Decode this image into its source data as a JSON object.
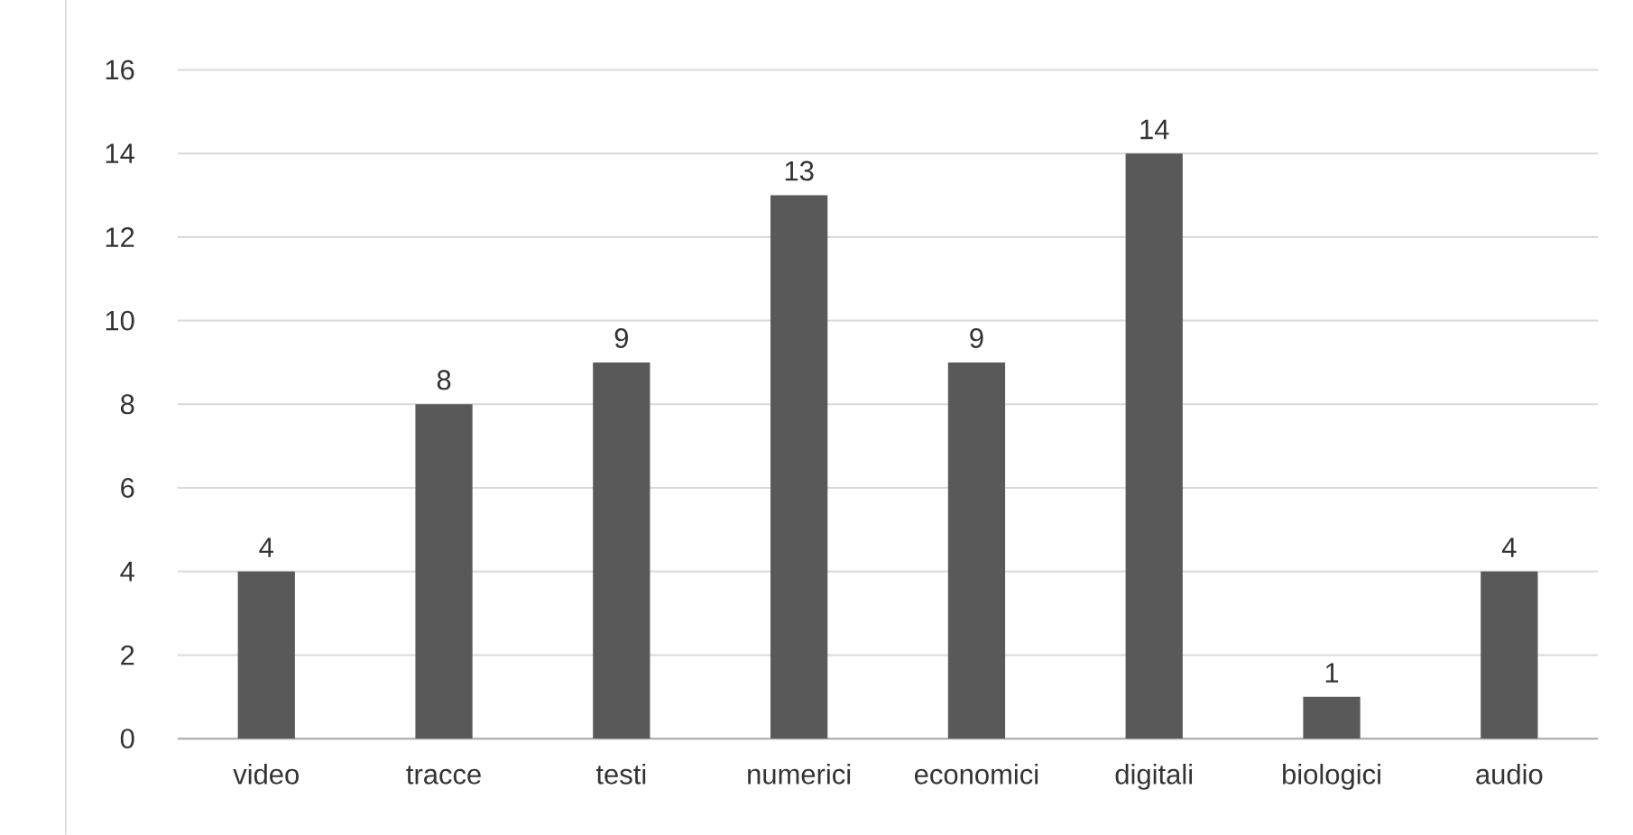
{
  "chart_data": {
    "type": "bar",
    "categories": [
      "video",
      "tracce",
      "testi",
      "numerici",
      "economici",
      "digitali",
      "biologici",
      "audio"
    ],
    "values": [
      4,
      8,
      9,
      13,
      9,
      14,
      1,
      4
    ],
    "color": "#595959",
    "ylim": [
      0,
      16
    ],
    "yticks": [
      0,
      2,
      4,
      6,
      8,
      10,
      12,
      14,
      16
    ],
    "grid": "y",
    "data_labels": true
  }
}
